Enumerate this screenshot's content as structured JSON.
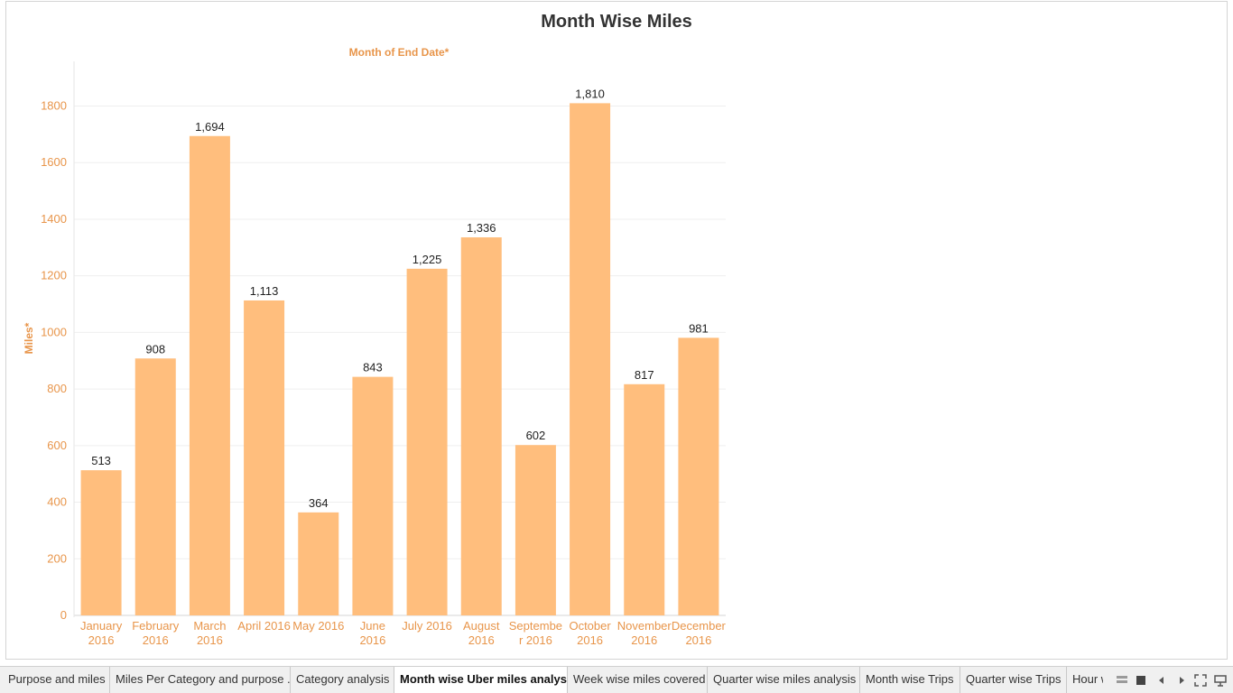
{
  "chart_data": {
    "type": "bar",
    "title": "Month Wise Miles",
    "xlabel": "Month of End Date*",
    "ylabel": "Miles*",
    "ylim": [
      0,
      1900
    ],
    "yticks": [
      0,
      200,
      400,
      600,
      800,
      1000,
      1200,
      1400,
      1600,
      1800
    ],
    "categories": [
      "January 2016",
      "February 2016",
      "March 2016",
      "April 2016",
      "May 2016",
      "June 2016",
      "July 2016",
      "August 2016",
      "Septembe r 2016",
      "October 2016",
      "November 2016",
      "December 2016"
    ],
    "values": [
      513,
      908,
      1694,
      1113,
      364,
      843,
      1225,
      1336,
      602,
      1810,
      817,
      981
    ],
    "value_labels": [
      "513",
      "908",
      "1,694",
      "1,113",
      "364",
      "843",
      "1,225",
      "1,336",
      "602",
      "1,810",
      "817",
      "981"
    ],
    "grid": true,
    "colors": {
      "bar": "#ffbe7d",
      "axis_text": "#e8954a",
      "label_text": "#222222"
    }
  },
  "tabs": [
    {
      "label": "Purpose and miles"
    },
    {
      "label": "Miles Per Category and purpose ..."
    },
    {
      "label": "Category analysis"
    },
    {
      "label": "Month wise Uber miles analysis",
      "active": true
    },
    {
      "label": "Week wise miles covered"
    },
    {
      "label": "Quarter wise miles analysis"
    },
    {
      "label": "Month wise Trips"
    },
    {
      "label": "Quarter wise Trips"
    },
    {
      "label": "Hour wise"
    }
  ],
  "nav_controls": [
    "show-sheets-icon",
    "filmstrip-icon",
    "prev-sheet-icon",
    "next-sheet-icon",
    "fit-screen-icon",
    "presentation-mode-icon"
  ]
}
